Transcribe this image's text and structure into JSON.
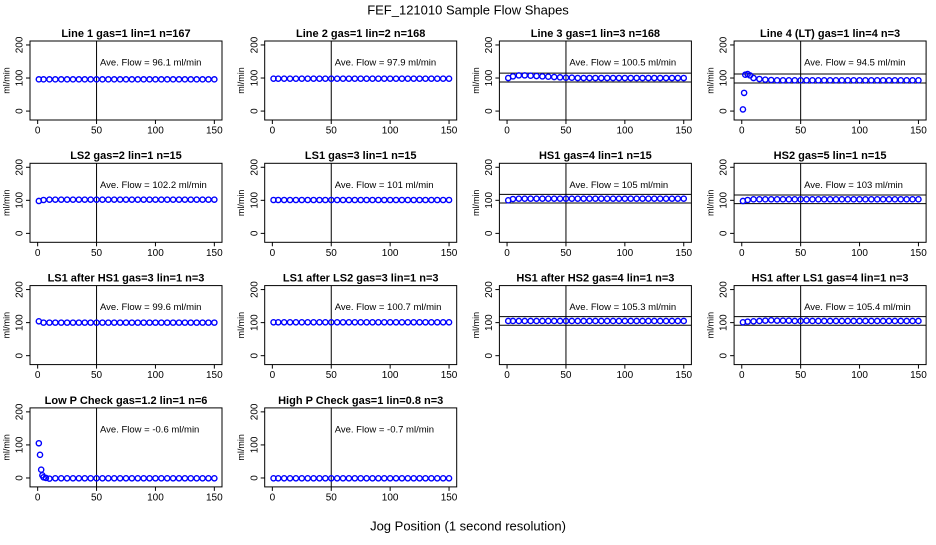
{
  "title": "FEF_121010  Sample Flow Shapes",
  "xlabel": "Jog Position (1 second resolution)",
  "chart_data": [
    {
      "type": "scatter",
      "title": "Line 1 gas=1 lin=1 n=167",
      "annotation": "Ave. Flow = 96.1  ml/min",
      "ylabel": "ml/min",
      "color": "#0000ff",
      "xlim": [
        -6.5,
        156.5
      ],
      "ylim": [
        -27,
        212
      ],
      "xticks": [
        0,
        50,
        100,
        150
      ],
      "yticks": [
        0,
        100,
        200
      ],
      "vline": 50,
      "x": [
        1,
        5,
        10,
        15,
        20,
        25,
        30,
        35,
        40,
        45,
        50,
        55,
        60,
        65,
        70,
        75,
        80,
        85,
        90,
        95,
        100,
        105,
        110,
        115,
        120,
        125,
        130,
        135,
        140,
        145,
        150
      ],
      "values": [
        96,
        96,
        96,
        96,
        96,
        96,
        96,
        96,
        96,
        96,
        96,
        96,
        96,
        96,
        96,
        96,
        96,
        96,
        96,
        96,
        96,
        96,
        96,
        96,
        96,
        96,
        96,
        96,
        96,
        96,
        96
      ]
    },
    {
      "type": "scatter",
      "title": "Line 2 gas=1 lin=2 n=168",
      "annotation": "Ave. Flow = 97.9  ml/min",
      "ylabel": "ml/min",
      "color": "#0000ff",
      "xlim": [
        -6.5,
        156.5
      ],
      "ylim": [
        -27,
        212
      ],
      "xticks": [
        0,
        50,
        100,
        150
      ],
      "yticks": [
        0,
        100,
        200
      ],
      "vline": 50,
      "x": [
        1,
        5,
        10,
        15,
        20,
        25,
        30,
        35,
        40,
        45,
        50,
        55,
        60,
        65,
        70,
        75,
        80,
        85,
        90,
        95,
        100,
        105,
        110,
        115,
        120,
        125,
        130,
        135,
        140,
        145,
        150
      ],
      "values": [
        98,
        98,
        98,
        98,
        98,
        98,
        98,
        98,
        98,
        98,
        98,
        98,
        98,
        98,
        98,
        98,
        98,
        98,
        98,
        98,
        98,
        98,
        98,
        98,
        98,
        98,
        98,
        98,
        98,
        98,
        98
      ]
    },
    {
      "type": "scatter",
      "title": "Line 3 gas=1 lin=3 n=168",
      "annotation": "Ave. Flow = 100.5  ml/min",
      "ylabel": "ml/min",
      "color": "#0000ff",
      "xlim": [
        -6.5,
        156.5
      ],
      "ylim": [
        -27,
        212
      ],
      "xticks": [
        0,
        50,
        100,
        150
      ],
      "yticks": [
        0,
        100,
        200
      ],
      "vline": 50,
      "hlines": [
        88,
        115
      ],
      "x": [
        1,
        5,
        10,
        15,
        20,
        25,
        30,
        35,
        40,
        45,
        50,
        55,
        60,
        65,
        70,
        75,
        80,
        85,
        90,
        95,
        100,
        105,
        110,
        115,
        120,
        125,
        130,
        135,
        140,
        145,
        150
      ],
      "values": [
        100,
        105,
        108,
        108,
        107,
        106,
        105,
        104,
        103,
        102,
        101,
        101,
        100,
        100,
        100,
        100,
        100,
        100,
        100,
        100,
        100,
        100,
        100,
        100,
        100,
        100,
        100,
        100,
        100,
        100,
        100
      ]
    },
    {
      "type": "scatter",
      "title": "Line 4 (LT) gas=1 lin=4 n=3",
      "annotation": "Ave. Flow = 94.5  ml/min",
      "ylabel": "ml/min",
      "color": "#0000ff",
      "xlim": [
        -6.5,
        156.5
      ],
      "ylim": [
        -27,
        212
      ],
      "xticks": [
        0,
        50,
        100,
        150
      ],
      "yticks": [
        0,
        100,
        200
      ],
      "vline": 50,
      "hlines": [
        85,
        112
      ],
      "x": [
        1,
        2,
        3,
        5,
        7,
        10,
        15,
        20,
        25,
        30,
        35,
        40,
        45,
        50,
        55,
        60,
        65,
        70,
        75,
        80,
        85,
        90,
        95,
        100,
        105,
        110,
        115,
        120,
        125,
        130,
        135,
        140,
        145,
        150
      ],
      "values": [
        5,
        55,
        110,
        112,
        108,
        100,
        97,
        95,
        94,
        93,
        93,
        93,
        93,
        93,
        93,
        93,
        93,
        93,
        93,
        93,
        93,
        93,
        93,
        93,
        93,
        93,
        93,
        93,
        93,
        93,
        93,
        93,
        93,
        93
      ]
    },
    {
      "type": "scatter",
      "title": "LS2 gas=2 lin=1 n=15",
      "annotation": "Ave. Flow = 102.2  ml/min",
      "ylabel": "ml/min",
      "color": "#0000ff",
      "xlim": [
        -6.5,
        156.5
      ],
      "ylim": [
        -27,
        212
      ],
      "xticks": [
        0,
        50,
        100,
        150
      ],
      "yticks": [
        0,
        100,
        200
      ],
      "vline": 50,
      "x": [
        1,
        5,
        10,
        15,
        20,
        25,
        30,
        35,
        40,
        45,
        50,
        55,
        60,
        65,
        70,
        75,
        80,
        85,
        90,
        95,
        100,
        105,
        110,
        115,
        120,
        125,
        130,
        135,
        140,
        145,
        150
      ],
      "values": [
        98,
        101,
        102,
        102,
        102,
        102,
        102,
        102,
        102,
        102,
        102,
        102,
        102,
        102,
        102,
        102,
        102,
        102,
        102,
        102,
        102,
        102,
        102,
        102,
        102,
        102,
        102,
        102,
        102,
        102,
        102
      ]
    },
    {
      "type": "scatter",
      "title": "LS1 gas=3 lin=1 n=15",
      "annotation": "Ave. Flow = 101  ml/min",
      "ylabel": "ml/min",
      "color": "#0000ff",
      "xlim": [
        -6.5,
        156.5
      ],
      "ylim": [
        -27,
        212
      ],
      "xticks": [
        0,
        50,
        100,
        150
      ],
      "yticks": [
        0,
        100,
        200
      ],
      "vline": 50,
      "x": [
        1,
        5,
        10,
        15,
        20,
        25,
        30,
        35,
        40,
        45,
        50,
        55,
        60,
        65,
        70,
        75,
        80,
        85,
        90,
        95,
        100,
        105,
        110,
        115,
        120,
        125,
        130,
        135,
        140,
        145,
        150
      ],
      "values": [
        101,
        101,
        101,
        101,
        101,
        101,
        101,
        101,
        101,
        101,
        101,
        101,
        101,
        101,
        101,
        101,
        101,
        101,
        101,
        101,
        101,
        101,
        101,
        101,
        101,
        101,
        101,
        101,
        101,
        101,
        101
      ]
    },
    {
      "type": "scatter",
      "title": "HS1 gas=4 lin=1 n=15",
      "annotation": "Ave. Flow = 105  ml/min",
      "ylabel": "ml/min",
      "color": "#0000ff",
      "xlim": [
        -6.5,
        156.5
      ],
      "ylim": [
        -27,
        212
      ],
      "xticks": [
        0,
        50,
        100,
        150
      ],
      "yticks": [
        0,
        100,
        200
      ],
      "vline": 50,
      "hlines": [
        92,
        118
      ],
      "x": [
        1,
        5,
        10,
        15,
        20,
        25,
        30,
        35,
        40,
        45,
        50,
        55,
        60,
        65,
        70,
        75,
        80,
        85,
        90,
        95,
        100,
        105,
        110,
        115,
        120,
        125,
        130,
        135,
        140,
        145,
        150
      ],
      "values": [
        100,
        104,
        105,
        105,
        105,
        105,
        105,
        105,
        105,
        105,
        105,
        105,
        105,
        105,
        105,
        105,
        105,
        105,
        105,
        105,
        105,
        105,
        105,
        105,
        105,
        105,
        105,
        105,
        105,
        105,
        105
      ]
    },
    {
      "type": "scatter",
      "title": "HS2 gas=5 lin=1 n=15",
      "annotation": "Ave. Flow = 103  ml/min",
      "ylabel": "ml/min",
      "color": "#0000ff",
      "xlim": [
        -6.5,
        156.5
      ],
      "ylim": [
        -27,
        212
      ],
      "xticks": [
        0,
        50,
        100,
        150
      ],
      "yticks": [
        0,
        100,
        200
      ],
      "vline": 50,
      "hlines": [
        90,
        116
      ],
      "x": [
        1,
        5,
        10,
        15,
        20,
        25,
        30,
        35,
        40,
        45,
        50,
        55,
        60,
        65,
        70,
        75,
        80,
        85,
        90,
        95,
        100,
        105,
        110,
        115,
        120,
        125,
        130,
        135,
        140,
        145,
        150
      ],
      "values": [
        98,
        101,
        103,
        103,
        103,
        103,
        103,
        103,
        103,
        103,
        103,
        103,
        103,
        103,
        103,
        103,
        103,
        103,
        103,
        103,
        103,
        103,
        103,
        103,
        103,
        103,
        103,
        103,
        103,
        103,
        103
      ]
    },
    {
      "type": "scatter",
      "title": "LS1 after HS1 gas=3 lin=1 n=3",
      "annotation": "Ave. Flow = 99.6  ml/min",
      "ylabel": "ml/min",
      "color": "#0000ff",
      "xlim": [
        -6.5,
        156.5
      ],
      "ylim": [
        -27,
        212
      ],
      "xticks": [
        0,
        50,
        100,
        150
      ],
      "yticks": [
        0,
        100,
        200
      ],
      "vline": 50,
      "x": [
        1,
        5,
        10,
        15,
        20,
        25,
        30,
        35,
        40,
        45,
        50,
        55,
        60,
        65,
        70,
        75,
        80,
        85,
        90,
        95,
        100,
        105,
        110,
        115,
        120,
        125,
        130,
        135,
        140,
        145,
        150
      ],
      "values": [
        104,
        100,
        100,
        100,
        100,
        100,
        100,
        100,
        100,
        100,
        100,
        100,
        100,
        100,
        100,
        100,
        100,
        100,
        100,
        100,
        100,
        100,
        100,
        100,
        100,
        100,
        100,
        100,
        100,
        100,
        100
      ]
    },
    {
      "type": "scatter",
      "title": "LS1 after LS2 gas=3 lin=1 n=3",
      "annotation": "Ave. Flow = 100.7  ml/min",
      "ylabel": "ml/min",
      "color": "#0000ff",
      "xlim": [
        -6.5,
        156.5
      ],
      "ylim": [
        -27,
        212
      ],
      "xticks": [
        0,
        50,
        100,
        150
      ],
      "yticks": [
        0,
        100,
        200
      ],
      "vline": 50,
      "x": [
        1,
        5,
        10,
        15,
        20,
        25,
        30,
        35,
        40,
        45,
        50,
        55,
        60,
        65,
        70,
        75,
        80,
        85,
        90,
        95,
        100,
        105,
        110,
        115,
        120,
        125,
        130,
        135,
        140,
        145,
        150
      ],
      "values": [
        101,
        101,
        101,
        101,
        101,
        101,
        101,
        101,
        101,
        101,
        101,
        101,
        101,
        101,
        101,
        101,
        101,
        101,
        101,
        101,
        101,
        101,
        101,
        101,
        101,
        101,
        101,
        101,
        101,
        101,
        101
      ]
    },
    {
      "type": "scatter",
      "title": "HS1 after HS2 gas=4 lin=1 n=3",
      "annotation": "Ave. Flow = 105.3  ml/min",
      "ylabel": "ml/min",
      "color": "#0000ff",
      "xlim": [
        -6.5,
        156.5
      ],
      "ylim": [
        -27,
        212
      ],
      "xticks": [
        0,
        50,
        100,
        150
      ],
      "yticks": [
        0,
        100,
        200
      ],
      "vline": 50,
      "hlines": [
        92,
        118
      ],
      "x": [
        1,
        5,
        10,
        15,
        20,
        25,
        30,
        35,
        40,
        45,
        50,
        55,
        60,
        65,
        70,
        75,
        80,
        85,
        90,
        95,
        100,
        105,
        110,
        115,
        120,
        125,
        130,
        135,
        140,
        145,
        150
      ],
      "values": [
        105,
        105,
        105,
        105,
        105,
        105,
        105,
        105,
        105,
        105,
        105,
        105,
        105,
        105,
        105,
        105,
        105,
        105,
        105,
        105,
        105,
        105,
        105,
        105,
        105,
        105,
        105,
        105,
        105,
        105,
        105
      ]
    },
    {
      "type": "scatter",
      "title": "HS1 after LS1 gas=4 lin=1 n=3",
      "annotation": "Ave. Flow = 105.4  ml/min",
      "ylabel": "ml/min",
      "color": "#0000ff",
      "xlim": [
        -6.5,
        156.5
      ],
      "ylim": [
        -27,
        212
      ],
      "xticks": [
        0,
        50,
        100,
        150
      ],
      "yticks": [
        0,
        100,
        200
      ],
      "vline": 50,
      "hlines": [
        92,
        118
      ],
      "x": [
        1,
        5,
        10,
        15,
        20,
        25,
        30,
        35,
        40,
        45,
        50,
        55,
        60,
        65,
        70,
        75,
        80,
        85,
        90,
        95,
        100,
        105,
        110,
        115,
        120,
        125,
        130,
        135,
        140,
        145,
        150
      ],
      "values": [
        101,
        103,
        104,
        105,
        106,
        107,
        106,
        106,
        106,
        105,
        105,
        106,
        105,
        105,
        105,
        105,
        105,
        105,
        105,
        105,
        105,
        105,
        105,
        105,
        105,
        105,
        105,
        105,
        105,
        105,
        105
      ]
    },
    {
      "type": "scatter",
      "title": "Low P Check gas=1.2 lin=1 n=6",
      "annotation": "Ave. Flow = -0.6  ml/min",
      "ylabel": "ml/min",
      "color": "#0000ff",
      "xlim": [
        -6.5,
        156.5
      ],
      "ylim": [
        -27,
        212
      ],
      "xticks": [
        0,
        50,
        100,
        150
      ],
      "yticks": [
        0,
        100,
        200
      ],
      "vline": 50,
      "x": [
        1,
        2,
        3,
        4,
        5,
        7,
        10,
        15,
        20,
        25,
        30,
        35,
        40,
        45,
        50,
        55,
        60,
        65,
        70,
        75,
        80,
        85,
        90,
        95,
        100,
        105,
        110,
        115,
        120,
        125,
        130,
        135,
        140,
        145,
        150
      ],
      "values": [
        105,
        70,
        25,
        8,
        2,
        0,
        -2,
        -1,
        -1,
        -1,
        -1,
        -1,
        -1,
        -1,
        -1,
        -1,
        -1,
        -1,
        -1,
        -1,
        -1,
        -1,
        -1,
        -1,
        -1,
        -1,
        -1,
        -1,
        -1,
        -1,
        -1,
        -1,
        -1,
        -1,
        -1
      ]
    },
    {
      "type": "scatter",
      "title": "High P Check gas=1 lin=0.8 n=3",
      "annotation": "Ave. Flow = -0.7  ml/min",
      "ylabel": "ml/min",
      "color": "#0000ff",
      "xlim": [
        -6.5,
        156.5
      ],
      "ylim": [
        -27,
        212
      ],
      "xticks": [
        0,
        50,
        100,
        150
      ],
      "yticks": [
        0,
        100,
        200
      ],
      "vline": 50,
      "x": [
        1,
        5,
        10,
        15,
        20,
        25,
        30,
        35,
        40,
        45,
        50,
        55,
        60,
        65,
        70,
        75,
        80,
        85,
        90,
        95,
        100,
        105,
        110,
        115,
        120,
        125,
        130,
        135,
        140,
        145,
        150
      ],
      "values": [
        -1,
        -1,
        -1,
        -1,
        -1,
        -1,
        -1,
        -1,
        -1,
        -1,
        -1,
        -1,
        -1,
        -1,
        -1,
        -1,
        -1,
        -1,
        -1,
        -1,
        -1,
        -1,
        -1,
        -1,
        -1,
        -1,
        -1,
        -1,
        -1,
        -1,
        -1
      ]
    }
  ]
}
